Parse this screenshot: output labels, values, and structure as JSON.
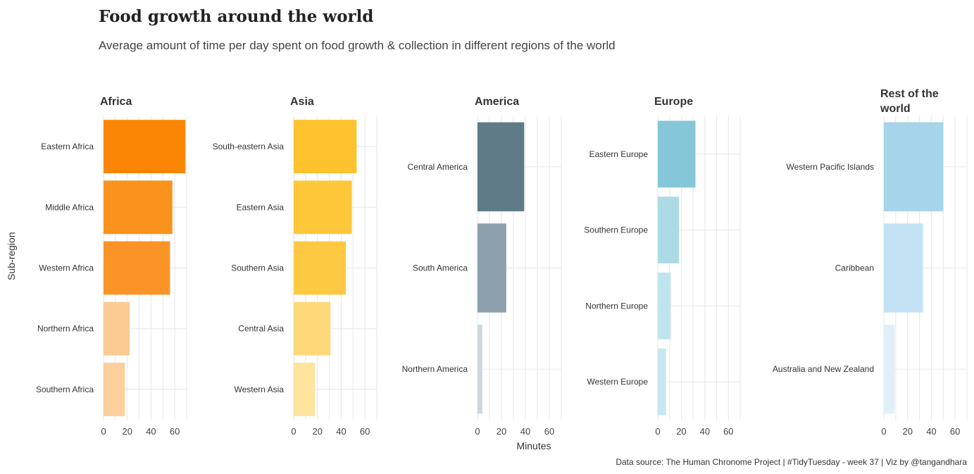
{
  "title": "Food growth around the world",
  "subtitle": "Average amount of time per day spent on food growth & collection in  different regions of the world",
  "ylabel": "Sub-region",
  "xlabel": "Minutes",
  "caption": "Data source: The Human Chronome Project | #TidyTuesday - week 37 | Viz by @tangandhara",
  "chart_data": {
    "type": "bar",
    "orientation": "horizontal",
    "facet_by": "region",
    "xlim": [
      0,
      70
    ],
    "xticks": [
      0,
      20,
      40,
      60
    ],
    "grid": true,
    "panels": [
      {
        "title": "Africa",
        "categories": [
          "Eastern Africa",
          "Middle Africa",
          "Western Africa",
          "Northern Africa",
          "Southern Africa"
        ],
        "values": [
          69,
          58,
          56,
          22,
          18
        ],
        "colors": [
          "#fb8605",
          "#fb921e",
          "#fb9426",
          "#fccb94",
          "#fccf9c"
        ]
      },
      {
        "title": "Asia",
        "categories": [
          "South-eastern Asia",
          "Eastern Asia",
          "Southern Asia",
          "Central Asia",
          "Western Asia"
        ],
        "values": [
          53,
          49,
          44,
          31,
          18
        ],
        "colors": [
          "#fec22e",
          "#fec73a",
          "#fec942",
          "#fed87a",
          "#fee49e"
        ]
      },
      {
        "title": "America",
        "categories": [
          "Central America",
          "South America",
          "Northern America"
        ],
        "values": [
          39,
          24,
          4
        ],
        "colors": [
          "#5f7b88",
          "#8ca1ab",
          "#ccd7de"
        ]
      },
      {
        "title": "Europe",
        "categories": [
          "Eastern Europe",
          "Southern Europe",
          "Northern Europe",
          "Western Europe"
        ],
        "values": [
          32,
          18,
          11,
          7
        ],
        "colors": [
          "#85c7d8",
          "#acdbe6",
          "#c0e4ed",
          "#c8e8f0"
        ]
      },
      {
        "title": "Rest of the world",
        "categories": [
          "Western Pacific Islands",
          "Caribbean",
          "Australia and New Zealand"
        ],
        "values": [
          50,
          33,
          9
        ],
        "colors": [
          "#a6d4eb",
          "#c3e2f3",
          "#dff0f8"
        ]
      }
    ]
  }
}
